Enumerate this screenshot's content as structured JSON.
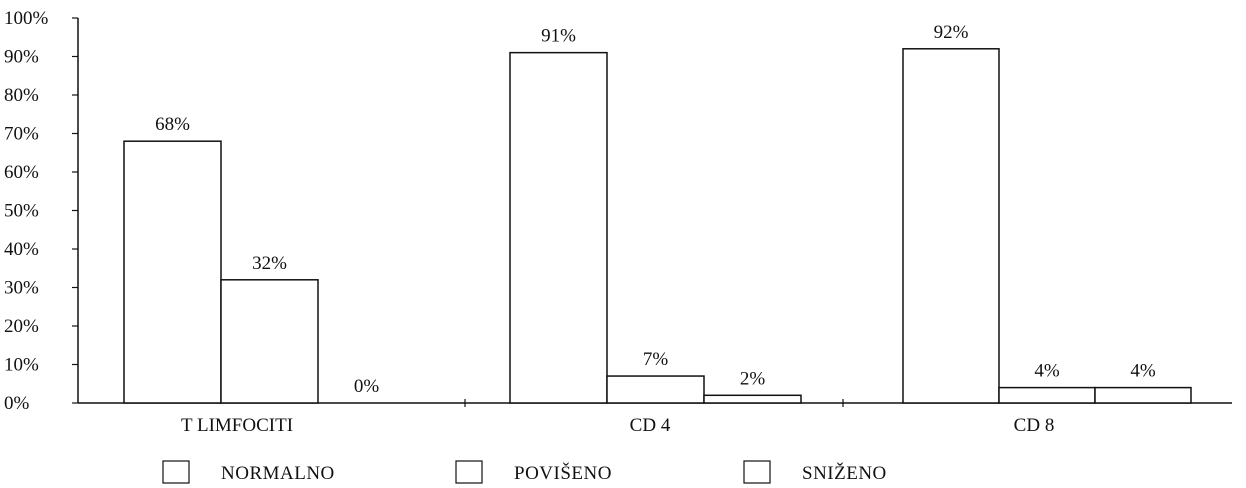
{
  "chart_data": {
    "type": "bar",
    "categories": [
      "T LIMFOCITI",
      "CD 4",
      "CD 8"
    ],
    "series": [
      {
        "name": "NORMALNO",
        "values": [
          68,
          91,
          92
        ],
        "labels": [
          "68%",
          "91%",
          "92%"
        ]
      },
      {
        "name": "POVIŠENO",
        "values": [
          32,
          7,
          4
        ],
        "labels": [
          "32%",
          "7%",
          "4%"
        ]
      },
      {
        "name": "SNIŽENO",
        "values": [
          0,
          2,
          4
        ],
        "labels": [
          "0%",
          "2%",
          "4%"
        ]
      }
    ],
    "y_ticks": [
      "0%",
      "10%",
      "20%",
      "30%",
      "40%",
      "50%",
      "60%",
      "70%",
      "80%",
      "90%",
      "100%"
    ],
    "ylim": [
      0,
      100
    ],
    "bar_fill": "#ffffff",
    "bar_stroke": "#111111",
    "grid": false,
    "legend_position": "bottom"
  }
}
